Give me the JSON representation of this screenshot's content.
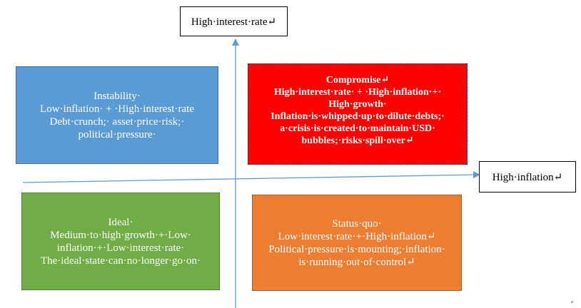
{
  "axes": {
    "y_label": "High·interest·rate↵",
    "x_label": "High·inflation↵",
    "color": "#5b9bd5"
  },
  "quadrants": {
    "instability": {
      "title": "Instability·",
      "lines": [
        "Low·inflation· + ·High·interest·rate",
        "Debt·crunch;· asset·price·risk;·",
        "political·pressure·"
      ],
      "color": "#5b9bd5"
    },
    "compromise": {
      "title": "Compromise↵",
      "lines": [
        "High·interest·rate· + ·High·inflation·+·",
        "High·growth·",
        "Inflation·is·whipped·up·to·dilute·debts;·",
        "a·crisis·is·created·to·maintain·USD·",
        "bubbles;·risks·spill·over↵"
      ],
      "color": "#ff0000"
    },
    "ideal": {
      "title": "Ideal·",
      "lines": [
        "Medium·to·high·growth·+·Low·",
        "inflation·+·Low·interest·rate·",
        "The·ideal·state·can·no·longer·go·on·"
      ],
      "color": "#70ad47"
    },
    "status_quo": {
      "title": "Status·quo·",
      "lines": [
        "Low·interest·rate·+·High·inflation↵",
        "Political·pressure·is·mounting;·inflation·",
        "is·running·out·of·control↵"
      ],
      "color": "#ed7d31"
    }
  },
  "corner_mark": "⸗"
}
